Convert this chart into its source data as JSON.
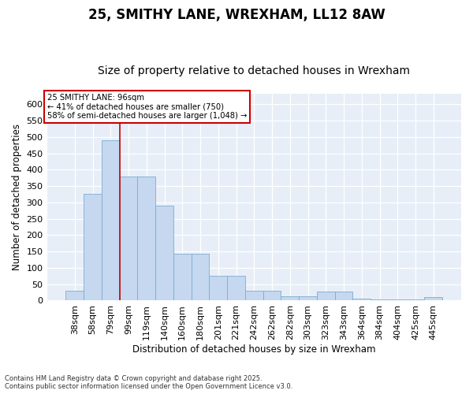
{
  "title": "25, SMITHY LANE, WREXHAM, LL12 8AW",
  "subtitle": "Size of property relative to detached houses in Wrexham",
  "xlabel": "Distribution of detached houses by size in Wrexham",
  "ylabel": "Number of detached properties",
  "categories": [
    "38sqm",
    "58sqm",
    "79sqm",
    "99sqm",
    "119sqm",
    "140sqm",
    "160sqm",
    "180sqm",
    "201sqm",
    "221sqm",
    "242sqm",
    "262sqm",
    "282sqm",
    "303sqm",
    "323sqm",
    "343sqm",
    "364sqm",
    "384sqm",
    "404sqm",
    "425sqm",
    "445sqm"
  ],
  "values": [
    30,
    325,
    490,
    380,
    380,
    290,
    143,
    143,
    76,
    76,
    30,
    30,
    14,
    14,
    28,
    28,
    6,
    3,
    3,
    3,
    10
  ],
  "bar_color": "#c5d8f0",
  "bar_edge_color": "#7aadce",
  "vline_x_index": 3,
  "vline_color": "#cc0000",
  "annotation_text": "25 SMITHY LANE: 96sqm\n← 41% of detached houses are smaller (750)\n58% of semi-detached houses are larger (1,048) →",
  "annotation_box_color": "white",
  "annotation_box_edge": "#cc0000",
  "ylim": [
    0,
    632
  ],
  "yticks": [
    0,
    50,
    100,
    150,
    200,
    250,
    300,
    350,
    400,
    450,
    500,
    550,
    600
  ],
  "footer": "Contains HM Land Registry data © Crown copyright and database right 2025.\nContains public sector information licensed under the Open Government Licence v3.0.",
  "bg_color": "#e8eef8",
  "title_fontsize": 12,
  "subtitle_fontsize": 10,
  "grid_color": "#ffffff"
}
